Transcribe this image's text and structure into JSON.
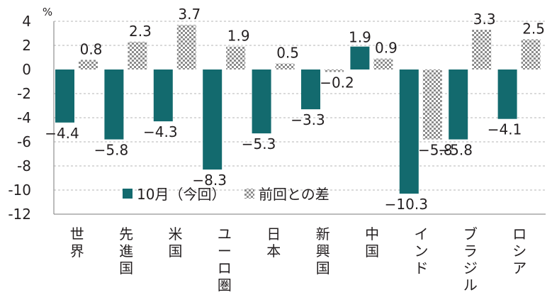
{
  "chart_data": {
    "type": "bar",
    "unit_label": "%",
    "ylim": [
      -12,
      4
    ],
    "yticks": [
      4,
      2,
      0,
      -2,
      -4,
      -6,
      -8,
      -10,
      -12
    ],
    "grid": "dashed horizontal",
    "legend_placement": "lower-center",
    "categories": [
      [
        "世",
        "界"
      ],
      [
        "先",
        "進",
        "国"
      ],
      [
        "米",
        "国"
      ],
      [
        "ユ",
        "ー",
        "ロ",
        "圏"
      ],
      [
        "日",
        "本"
      ],
      [
        "新",
        "興",
        "国"
      ],
      [
        "中",
        "国"
      ],
      [
        "イ",
        "ン",
        "ド"
      ],
      [
        "ブ",
        "ラ",
        "ジ",
        "ル"
      ],
      [
        "ロ",
        "シ",
        "ア"
      ]
    ],
    "series": [
      {
        "name": "10月（今回）",
        "color": "#136a6e",
        "style": "solid",
        "values": [
          -4.4,
          -5.8,
          -4.3,
          -8.3,
          -5.3,
          -3.3,
          1.9,
          -10.3,
          -5.8,
          -4.1
        ]
      },
      {
        "name": "前回との差",
        "color": "#9a9a9a",
        "style": "checkered",
        "values": [
          0.8,
          2.3,
          3.7,
          1.9,
          0.5,
          -0.2,
          0.9,
          -5.8,
          3.3,
          2.5
        ]
      }
    ]
  }
}
